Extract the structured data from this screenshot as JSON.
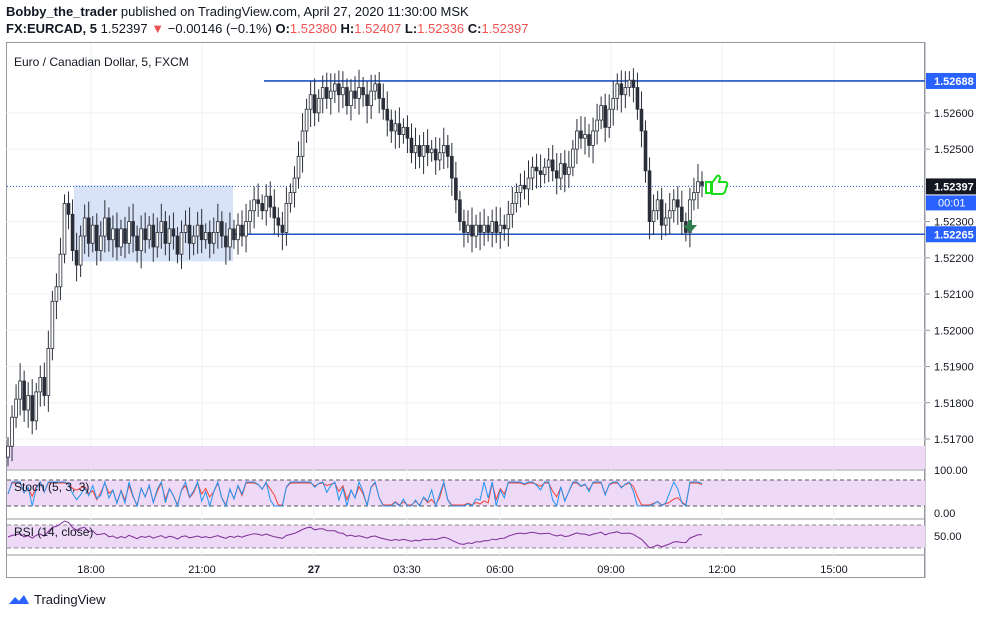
{
  "header": {
    "author": "Bobby_the_trader",
    "published_text": "published on TradingView.com, April 27, 2020 11:30:00 MSK",
    "symbol": "FX:EURCAD, 5",
    "last": "1.52397",
    "down_arrow": "▼",
    "change": "−0.00146 (−0.1%)",
    "o_label": "O:",
    "o_val": "1.52380",
    "h_label": "H:",
    "h_val": "1.52407",
    "l_label": "L:",
    "l_val": "1.52336",
    "c_label": "C:",
    "c_val": "1.52397"
  },
  "chart_data": {
    "type": "candlestick",
    "title": "Euro / Canadian Dollar, 5, FXCM",
    "y_range": [
      1.5162,
      1.5279
    ],
    "y_ticks": [
      "1.52600",
      "1.52500",
      "1.52300",
      "1.52200",
      "1.52100",
      "1.52000",
      "1.51900",
      "1.51800",
      "1.51700"
    ],
    "x_ticks": [
      "18:00",
      "21:00",
      "27",
      "03:30",
      "06:00",
      "09:00",
      "12:00",
      "15:00"
    ],
    "resistance_level": "1.52688",
    "support_level": "1.52265",
    "last_price_label": "1.52397",
    "countdown_label": "00:01",
    "closes": [
      1.5168,
      1.5176,
      1.5181,
      1.5186,
      1.5178,
      1.5182,
      1.5175,
      1.5183,
      1.5187,
      1.5182,
      1.5195,
      1.5208,
      1.5212,
      1.5221,
      1.5235,
      1.5232,
      1.5222,
      1.5218,
      1.5226,
      1.5231,
      1.5224,
      1.5229,
      1.5222,
      1.5226,
      1.5231,
      1.5225,
      1.5228,
      1.5223,
      1.5228,
      1.5224,
      1.523,
      1.5226,
      1.5222,
      1.5228,
      1.5225,
      1.5229,
      1.5223,
      1.5227,
      1.523,
      1.5224,
      1.5228,
      1.5226,
      1.5221,
      1.5227,
      1.5229,
      1.5224,
      1.5226,
      1.5229,
      1.5225,
      1.5227,
      1.5224,
      1.5227,
      1.523,
      1.5226,
      1.5223,
      1.5228,
      1.5225,
      1.5229,
      1.5226,
      1.523,
      1.5233,
      1.5236,
      1.5235,
      1.5233,
      1.5237,
      1.5234,
      1.5231,
      1.5229,
      1.5227,
      1.5235,
      1.5238,
      1.5242,
      1.5248,
      1.5255,
      1.5261,
      1.5265,
      1.526,
      1.5264,
      1.5267,
      1.5264,
      1.5266,
      1.5268,
      1.5265,
      1.5267,
      1.5262,
      1.5266,
      1.5264,
      1.5267,
      1.5265,
      1.5262,
      1.5266,
      1.5268,
      1.5264,
      1.5261,
      1.5258,
      1.5255,
      1.5257,
      1.5254,
      1.5256,
      1.5253,
      1.5249,
      1.5251,
      1.5248,
      1.5251,
      1.5249,
      1.525,
      1.5247,
      1.5249,
      1.5251,
      1.5248,
      1.5242,
      1.5236,
      1.523,
      1.5227,
      1.5229,
      1.5226,
      1.5229,
      1.5227,
      1.5229,
      1.5227,
      1.523,
      1.5227,
      1.5229,
      1.5228,
      1.5232,
      1.5235,
      1.5238,
      1.524,
      1.5239,
      1.5242,
      1.5245,
      1.5244,
      1.5243,
      1.5245,
      1.5247,
      1.5244,
      1.5242,
      1.5246,
      1.5243,
      1.5245,
      1.525,
      1.5255,
      1.5253,
      1.5254,
      1.5251,
      1.5255,
      1.5258,
      1.5262,
      1.5256,
      1.5261,
      1.5264,
      1.5268,
      1.5265,
      1.5267,
      1.5269,
      1.5267,
      1.5261,
      1.5255,
      1.5244,
      1.523,
      1.5233,
      1.5236,
      1.5229,
      1.5231,
      1.5233,
      1.5236,
      1.5234,
      1.523,
      1.5227,
      1.5236,
      1.5238,
      1.5241,
      1.524
    ]
  },
  "indicators": {
    "stoch_label": "Stoch (5, 3, 3)",
    "stoch_ticks": [
      "100.00",
      "0.00"
    ],
    "rsi_label": "RSI (14, close)",
    "rsi_tick": "50.00"
  },
  "colors": {
    "candle": "#2a2e39",
    "level_line": "#1e53c6",
    "axis_label_bg": "#2962ff",
    "last_label_bg": "#131722",
    "zone": "#c7d7f4",
    "indicator_bg": "#eed9f7",
    "stoch_k": "#2196f3",
    "stoch_d": "#f44336",
    "rsi": "#7e2d97",
    "thumb": "#1bdc1b",
    "arrow": "#2e7d4f"
  },
  "brand": "TradingView"
}
